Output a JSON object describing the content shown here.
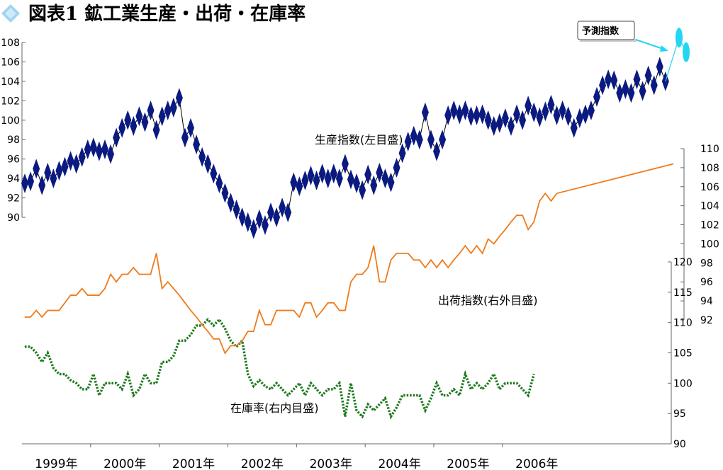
{
  "title": "図表1 鉱工業生産・出荷・在庫率",
  "colors": {
    "production": "#0b1a80",
    "shipments": "#f07a1a",
    "inventory": "#1f7a1f",
    "forecast": "#23d6f2",
    "title": "#1a3aa0"
  },
  "axes": {
    "left_ticks": [
      "90",
      "92",
      "94",
      "96",
      "98",
      "100",
      "102",
      "104",
      "106",
      "108"
    ],
    "right_outer_ticks": [
      "92",
      "94",
      "96",
      "98",
      "100",
      "102",
      "104",
      "106",
      "108",
      "110"
    ],
    "right_inner_ticks": [
      "90",
      "95",
      "100",
      "105",
      "110",
      "115",
      "120"
    ],
    "x_ticks": [
      "1999年",
      "2000年",
      "2001年",
      "2002年",
      "2003年",
      "2004年",
      "2005年",
      "2006年"
    ]
  },
  "labels": {
    "production": "生産指数(左目盛)",
    "shipments": "出荷指数(右外目盛)",
    "inventory": "在庫率(右内目盛)",
    "forecast": "予測指数"
  },
  "chart_data": {
    "type": "line",
    "title": "図表1 鉱工業生産・出荷・在庫率",
    "x_start": "1999-01",
    "frequency": "monthly",
    "series": [
      {
        "name": "生産指数(左目盛)",
        "axis": "left",
        "ylim": [
          90,
          108
        ],
        "values": [
          93.5,
          93.7,
          95.0,
          93.3,
          94.6,
          94.0,
          94.8,
          95.2,
          95.8,
          95.5,
          96.2,
          97.0,
          97.2,
          96.8,
          97.0,
          96.5,
          98.2,
          99.2,
          100.0,
          99.4,
          100.4,
          99.8,
          101.0,
          99.0,
          100.4,
          101.0,
          101.3,
          102.3,
          98.2,
          99.2,
          97.5,
          96.2,
          95.5,
          94.5,
          93.5,
          92.5,
          91.5,
          90.8,
          90.0,
          89.5,
          88.8,
          89.8,
          89.2,
          90.5,
          90.0,
          91.0,
          90.5,
          93.6,
          93.2,
          93.8,
          94.3,
          93.8,
          94.5,
          94.0,
          94.5,
          94.0,
          95.5,
          93.9,
          93.5,
          92.8,
          94.4,
          93.3,
          94.6,
          94.0,
          93.6,
          95.1,
          96.6,
          97.8,
          98.4,
          98.0,
          100.8,
          98.0,
          96.8,
          98.0,
          100.5,
          101.0,
          100.6,
          101.0,
          100.4,
          100.5,
          100.6,
          100.0,
          99.4,
          99.7,
          100.2,
          99.4,
          100.6,
          100.0,
          101.5,
          100.8,
          100.3,
          100.9,
          101.6,
          100.5,
          101.0,
          100.4,
          99.2,
          100.2,
          100.6,
          101.0,
          102.4,
          103.6,
          104.2,
          104.1,
          102.8,
          103.2,
          102.8,
          104.2,
          103.0,
          104.6,
          103.6,
          105.5,
          104.0
        ],
        "forecast_values": [
          108.5,
          107.0
        ]
      },
      {
        "name": "出荷指数(右外目盛)",
        "axis": "right_outer",
        "ylim": [
          92,
          110
        ],
        "values": [
          92.3,
          92.3,
          93.0,
          92.3,
          93.0,
          93.0,
          93.0,
          93.8,
          94.6,
          94.6,
          95.3,
          94.6,
          94.6,
          94.6,
          95.3,
          96.8,
          96.0,
          96.8,
          96.8,
          97.5,
          96.8,
          96.8,
          96.8,
          99.0,
          95.3,
          96.0,
          95.3,
          94.6,
          93.8,
          93.0,
          92.3,
          91.5,
          90.8,
          90.0,
          90.0,
          88.5,
          89.3,
          89.3,
          89.8,
          90.8,
          90.8,
          93.0,
          91.5,
          91.5,
          93.0,
          93.0,
          93.0,
          93.0,
          92.3,
          93.8,
          93.8,
          92.3,
          93.0,
          93.8,
          93.8,
          93.0,
          93.0,
          96.0,
          96.8,
          96.8,
          97.5,
          99.8,
          96.0,
          96.0,
          98.3,
          99.0,
          99.0,
          99.0,
          98.3,
          98.3,
          97.5,
          98.3,
          97.5,
          98.3,
          97.5,
          98.3,
          99.0,
          99.8,
          99.0,
          99.8,
          99.0,
          100.5,
          100.0,
          100.8,
          101.5,
          102.3,
          103.0,
          103.0,
          101.5,
          102.3,
          104.5,
          105.3,
          104.5,
          105.3
        ],
        "anchor_end": 108.4
      },
      {
        "name": "在庫率(右内目盛)",
        "axis": "right_inner",
        "ylim": [
          90,
          120
        ],
        "values": [
          106.0,
          106.0,
          105.0,
          103.5,
          105.0,
          102.5,
          101.5,
          101.5,
          100.5,
          100.0,
          99.0,
          99.0,
          101.5,
          98.0,
          100.0,
          100.0,
          100.0,
          99.0,
          101.5,
          98.0,
          99.0,
          101.5,
          100.0,
          100.0,
          103.5,
          103.5,
          104.5,
          107.0,
          107.0,
          108.0,
          109.5,
          109.5,
          110.5,
          109.5,
          110.5,
          109.0,
          107.0,
          106.0,
          107.0,
          101.5,
          99.5,
          100.5,
          99.5,
          99.0,
          100.0,
          99.0,
          98.0,
          99.0,
          100.0,
          98.0,
          100.0,
          99.0,
          98.0,
          99.0,
          99.0,
          100.0,
          94.5,
          100.0,
          95.5,
          94.5,
          96.5,
          95.5,
          96.5,
          97.5,
          94.5,
          96.0,
          98.0,
          98.0,
          98.0,
          98.0,
          95.5,
          97.5,
          100.0,
          98.0,
          98.0,
          99.0,
          98.0,
          101.5,
          99.0,
          100.0,
          99.0,
          100.0,
          101.5,
          99.0,
          100.0,
          100.0,
          100.0,
          99.0,
          98.0,
          101.5
        ]
      }
    ]
  }
}
